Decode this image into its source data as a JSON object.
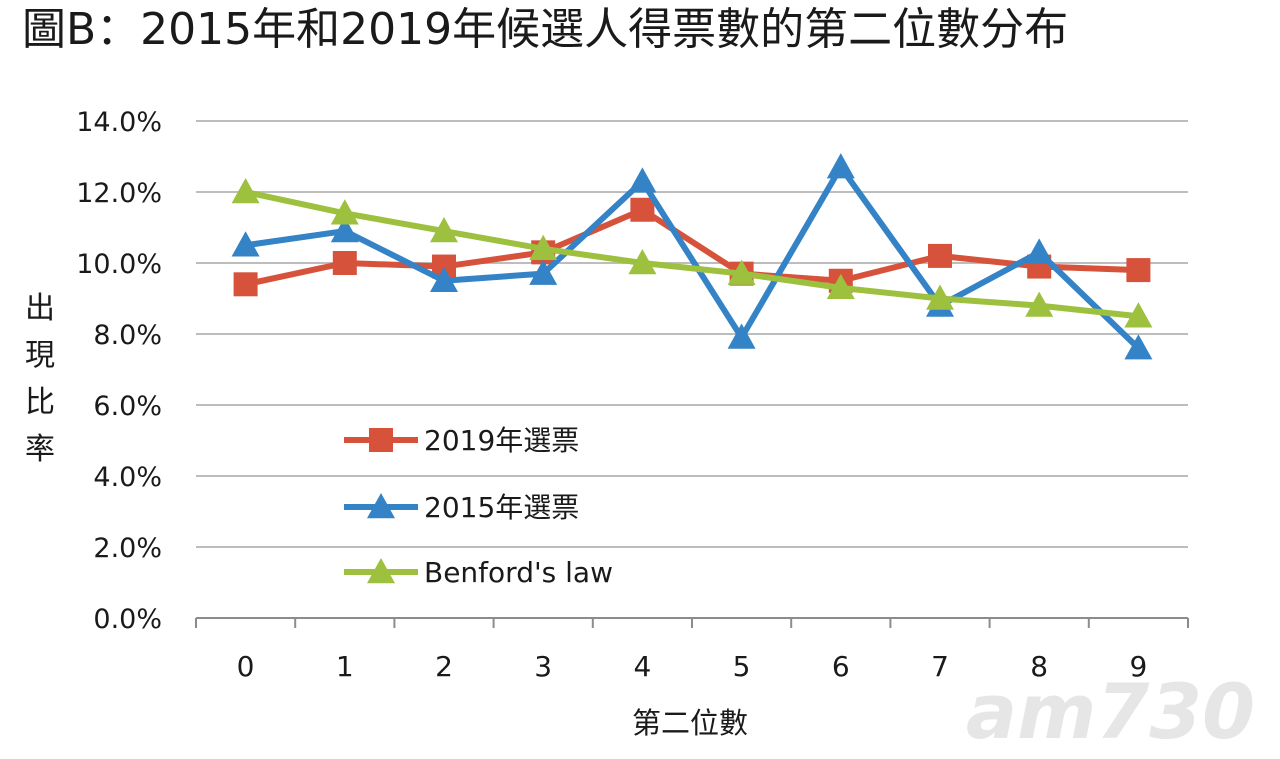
{
  "chart_data": {
    "type": "line",
    "title": "圖B：2015年和2019年候選人得票數的第二位數分布",
    "xlabel": "第二位數",
    "ylabel": "出現比率",
    "categories": [
      "0",
      "1",
      "2",
      "3",
      "4",
      "5",
      "6",
      "7",
      "8",
      "9"
    ],
    "yticks": [
      "0.0%",
      "2.0%",
      "4.0%",
      "6.0%",
      "8.0%",
      "10.0%",
      "12.0%",
      "14.0%"
    ],
    "ylim": [
      0,
      14
    ],
    "grid": true,
    "legend_position": "inside-lower-left",
    "series": [
      {
        "name": "2019年選票",
        "color": "#d6523a",
        "marker": "square",
        "values": [
          9.4,
          10.0,
          9.9,
          10.3,
          11.5,
          9.7,
          9.5,
          10.2,
          9.9,
          9.8
        ]
      },
      {
        "name": "2015年選票",
        "color": "#3483c6",
        "marker": "triangle",
        "values": [
          10.5,
          10.9,
          9.5,
          9.7,
          12.3,
          7.9,
          12.7,
          8.8,
          10.3,
          7.6
        ]
      },
      {
        "name": "Benford's law",
        "color": "#9dc13f",
        "marker": "triangle",
        "values": [
          12.0,
          11.4,
          10.9,
          10.4,
          10.0,
          9.7,
          9.3,
          9.0,
          8.8,
          8.5
        ]
      }
    ]
  },
  "watermark": {
    "text": "am730",
    "color": "#e6e6e6"
  }
}
